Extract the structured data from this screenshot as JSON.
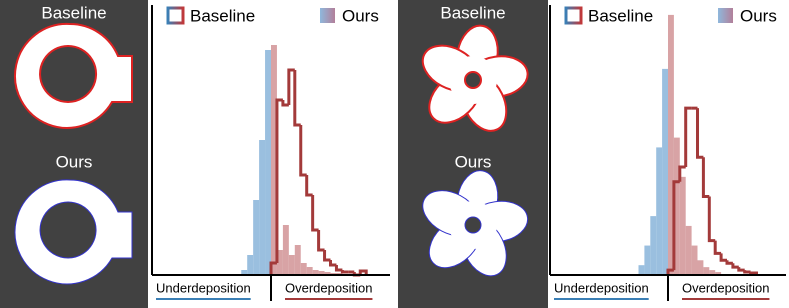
{
  "panels": [
    {
      "top_label": "Baseline",
      "bottom_label": "Ours"
    },
    {
      "top_label": "Baseline",
      "bottom_label": "Ours"
    }
  ],
  "chart_data": [
    {
      "type": "histogram",
      "xlim": [
        -1,
        1
      ],
      "ylim": [
        0,
        250
      ],
      "annotations": [
        "Underdeposition",
        "Overdeposition"
      ],
      "annotation_colors": [
        "#3b7fb5",
        "#a33a3a"
      ],
      "series": [
        {
          "name": "Ours",
          "style": "filled",
          "colors": [
            "#8fb8dc",
            "#d4999b"
          ],
          "bins": [
            -0.25,
            -0.2,
            -0.15,
            -0.1,
            -0.05,
            0,
            0.05,
            0.1,
            0.15,
            0.2,
            0.25,
            0.3,
            0.35,
            0.4,
            0.45,
            0.5,
            0.55,
            0.6
          ],
          "values": [
            5,
            20,
            75,
            135,
            225,
            230,
            25,
            50,
            20,
            30,
            12,
            8,
            5,
            4,
            3,
            2,
            2
          ]
        },
        {
          "name": "Baseline",
          "style": "outline",
          "colors": [
            "#3b7fb5",
            "#a33a3a"
          ],
          "bins": [
            0,
            0.05,
            0.1,
            0.15,
            0.2,
            0.25,
            0.3,
            0.35,
            0.4,
            0.45,
            0.5,
            0.55,
            0.6,
            0.65,
            0.7,
            0.75,
            0.8
          ],
          "values": [
            12,
            175,
            170,
            205,
            150,
            100,
            80,
            45,
            25,
            15,
            10,
            5,
            3,
            3,
            0,
            4
          ]
        }
      ]
    },
    {
      "type": "histogram",
      "xlim": [
        -1,
        1
      ],
      "ylim": [
        0,
        270
      ],
      "annotations": [
        "Underdeposition",
        "Overdeposition"
      ],
      "annotation_colors": [
        "#3b7fb5",
        "#a33a3a"
      ],
      "series": [
        {
          "name": "Ours",
          "style": "filled",
          "colors": [
            "#8fb8dc",
            "#d4999b"
          ],
          "bins": [
            -0.25,
            -0.2,
            -0.15,
            -0.1,
            -0.05,
            0,
            0.05,
            0.1,
            0.15,
            0.2,
            0.25,
            0.3,
            0.35,
            0.4,
            0.45
          ],
          "values": [
            10,
            30,
            60,
            130,
            210,
            265,
            140,
            100,
            50,
            30,
            15,
            8,
            5,
            3
          ]
        },
        {
          "name": "Baseline",
          "style": "outline",
          "colors": [
            "#3b7fb5",
            "#a33a3a"
          ],
          "bins": [
            0,
            0.05,
            0.1,
            0.15,
            0.2,
            0.25,
            0.3,
            0.35,
            0.4,
            0.45,
            0.5,
            0.55,
            0.6,
            0.65,
            0.7,
            0.75
          ],
          "values": [
            5,
            95,
            110,
            170,
            170,
            120,
            80,
            35,
            22,
            15,
            12,
            8,
            5,
            3,
            2
          ]
        }
      ]
    }
  ]
}
